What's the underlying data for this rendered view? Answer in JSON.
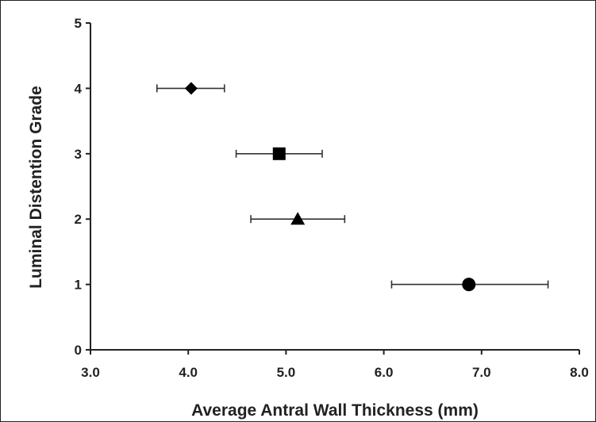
{
  "chart_data": {
    "type": "scatter",
    "xlabel": "Average Antral Wall Thickness (mm)",
    "ylabel": "Luminal Distention Grade",
    "xlim": [
      3.0,
      8.0
    ],
    "ylim": [
      0,
      5
    ],
    "x_ticks": [
      "3.0",
      "4.0",
      "5.0",
      "6.0",
      "7.0",
      "8.0"
    ],
    "y_ticks": [
      "0",
      "1",
      "2",
      "3",
      "4",
      "5"
    ],
    "grid": false,
    "points": [
      {
        "x": 4.03,
        "y": 4,
        "xerr_low": 3.68,
        "xerr_high": 4.37,
        "marker": "diamond"
      },
      {
        "x": 4.93,
        "y": 3,
        "xerr_low": 4.49,
        "xerr_high": 5.37,
        "marker": "square"
      },
      {
        "x": 5.12,
        "y": 2,
        "xerr_low": 4.64,
        "xerr_high": 5.6,
        "marker": "triangle"
      },
      {
        "x": 6.87,
        "y": 1,
        "xerr_low": 6.08,
        "xerr_high": 7.68,
        "marker": "circle"
      }
    ],
    "colors": {
      "marker": "#000000",
      "axis": "#222222",
      "errorbar": "#333333"
    }
  }
}
